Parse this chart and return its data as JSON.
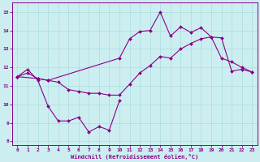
{
  "xlabel": "Windchill (Refroidissement éolien,°C)",
  "bg_color": "#cceef0",
  "line_color": "#880088",
  "grid_color": "#aadddd",
  "ylim": [
    7.8,
    15.5
  ],
  "xlim": [
    -0.5,
    23.5
  ],
  "yticks": [
    8,
    9,
    10,
    11,
    12,
    13,
    14,
    15
  ],
  "xticks": [
    0,
    1,
    2,
    3,
    4,
    5,
    6,
    7,
    8,
    9,
    10,
    11,
    12,
    13,
    14,
    15,
    16,
    17,
    18,
    19,
    20,
    21,
    22,
    23
  ],
  "series": [
    {
      "x": [
        0,
        1,
        2,
        3,
        4,
        5,
        6,
        7,
        8,
        9,
        10
      ],
      "y": [
        11.5,
        11.9,
        11.3,
        9.9,
        9.1,
        9.1,
        9.3,
        8.5,
        8.8,
        8.6,
        10.2
      ]
    },
    {
      "x": [
        0,
        1,
        2,
        3,
        4,
        5,
        6,
        7,
        8,
        9,
        10,
        11,
        12,
        13,
        14,
        15,
        16,
        17,
        18,
        19,
        20,
        21,
        22,
        23
      ],
      "y": [
        11.5,
        11.7,
        11.4,
        11.3,
        11.2,
        10.8,
        10.7,
        10.6,
        10.6,
        10.5,
        10.5,
        11.1,
        11.7,
        12.1,
        12.6,
        12.5,
        13.0,
        13.3,
        13.55,
        13.65,
        13.6,
        11.8,
        11.9,
        11.75
      ]
    },
    {
      "x": [
        0,
        2,
        3,
        10,
        11,
        12,
        13,
        14,
        15,
        16,
        17,
        18,
        19,
        20,
        21,
        22,
        23
      ],
      "y": [
        11.5,
        11.4,
        11.3,
        12.5,
        13.55,
        13.95,
        14.0,
        15.0,
        13.7,
        14.2,
        13.9,
        14.15,
        13.65,
        12.5,
        12.3,
        12.0,
        11.75
      ]
    }
  ]
}
